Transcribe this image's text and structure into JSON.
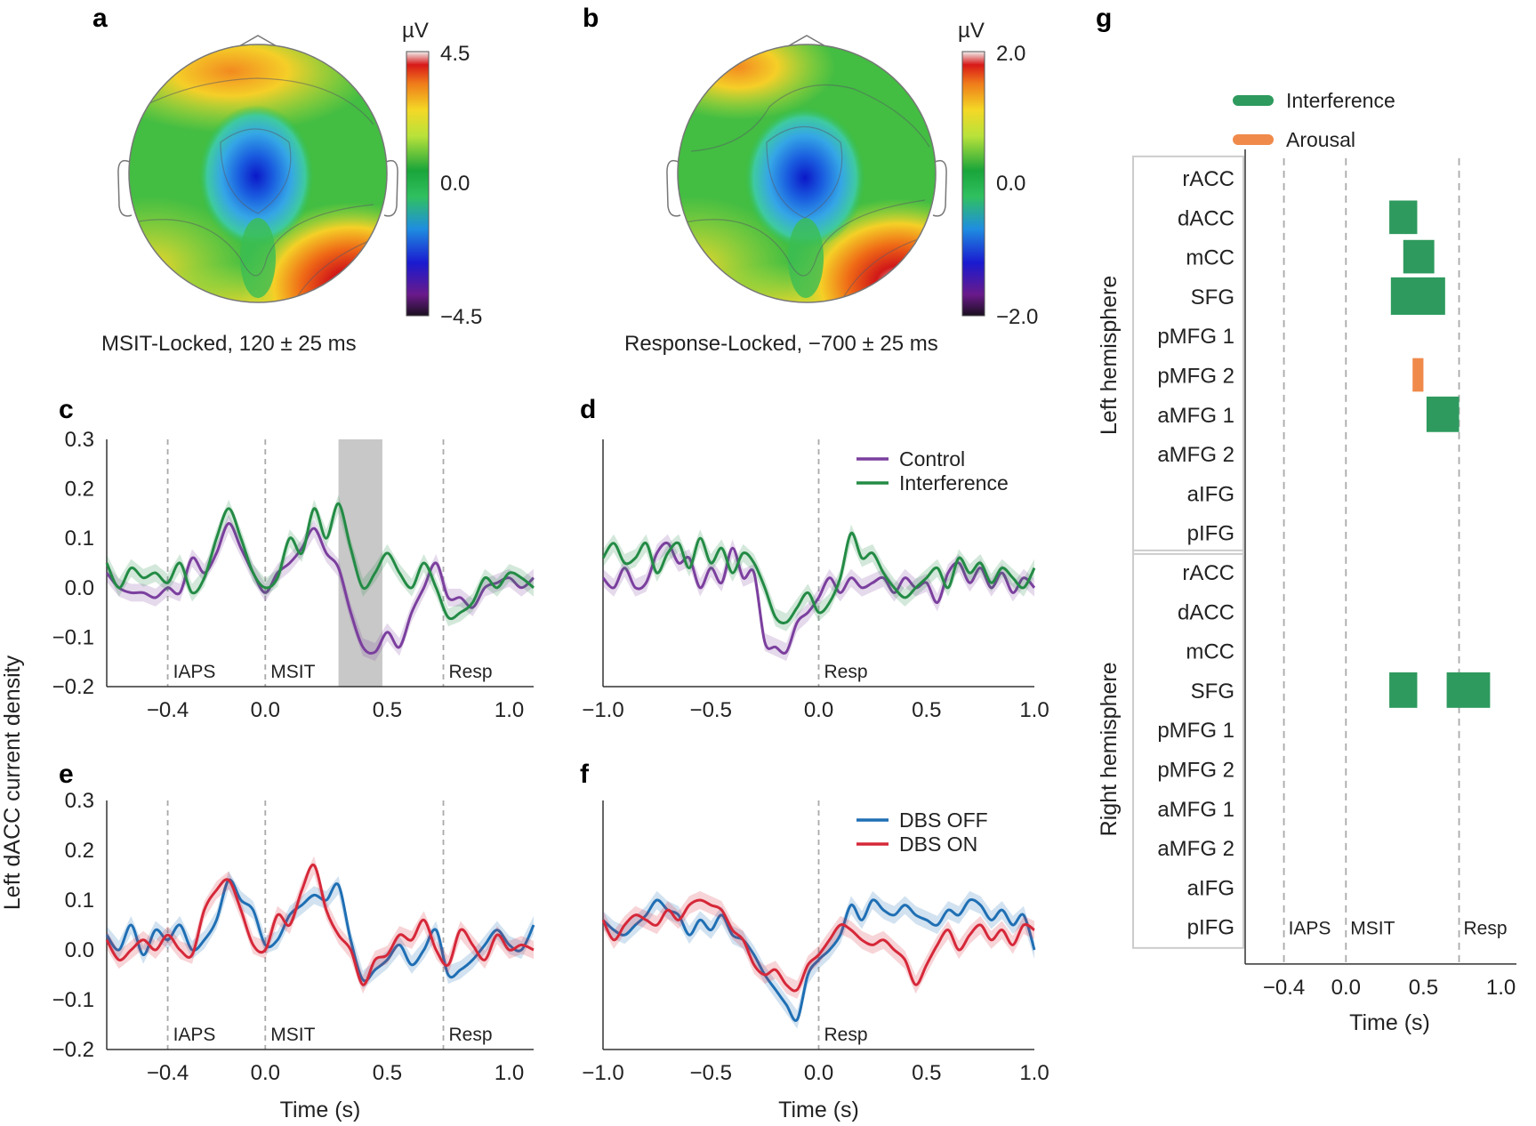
{
  "panel_letters": {
    "a": "a",
    "b": "b",
    "c": "c",
    "d": "d",
    "e": "e",
    "f": "f",
    "g": "g"
  },
  "colors": {
    "control": "#7b3f9e",
    "interference": "#238b45",
    "dbs_off": "#1f6fb4",
    "dbs_on": "#d62839",
    "arousal": "#f08a4b",
    "interference_bar": "#2e9a5e",
    "dashed": "#aaaaaa",
    "shade": "#c8c8c8"
  },
  "topomaps": [
    {
      "id": "a",
      "caption": "MSIT-Locked, 120 ± 25 ms",
      "unit": "µV",
      "vmax": "4.5",
      "vmid": "0.0",
      "vmin": "−4.5"
    },
    {
      "id": "b",
      "caption": "Response-Locked, −700 ± 25 ms",
      "unit": "µV",
      "vmax": "2.0",
      "vmid": "0.0",
      "vmin": "−2.0"
    }
  ],
  "shared_ylabel": "Left dACC current density",
  "xlabel": "Time (s)",
  "chart_data": [
    {
      "id": "c",
      "type": "line",
      "xlim": [
        -0.65,
        1.1
      ],
      "ylim": [
        -0.2,
        0.3
      ],
      "xticks": [
        {
          "v": -0.4,
          "label": "−0.4"
        },
        {
          "v": 0.0,
          "label": "0.0"
        },
        {
          "v": 0.5,
          "label": "0.5"
        },
        {
          "v": 1.0,
          "label": "1.0"
        }
      ],
      "yticks": [
        {
          "v": -0.2,
          "label": "−0.2"
        },
        {
          "v": -0.1,
          "label": "−0.1"
        },
        {
          "v": 0.0,
          "label": "0.0"
        },
        {
          "v": 0.1,
          "label": "0.1"
        },
        {
          "v": 0.2,
          "label": "0.2"
        },
        {
          "v": 0.3,
          "label": "0.3"
        }
      ],
      "events": [
        {
          "x": -0.4,
          "label": "IAPS"
        },
        {
          "x": 0.0,
          "label": "MSIT"
        },
        {
          "x": 0.73,
          "label": "Resp"
        }
      ],
      "shaded": [
        0.3,
        0.48
      ],
      "legend": [
        "Control",
        "Interference"
      ],
      "series": [
        {
          "name": "Control",
          "color": "#7b3f9e",
          "x": [
            -0.65,
            -0.6,
            -0.55,
            -0.5,
            -0.45,
            -0.4,
            -0.35,
            -0.3,
            -0.25,
            -0.2,
            -0.15,
            -0.1,
            -0.05,
            0,
            0.05,
            0.1,
            0.15,
            0.2,
            0.25,
            0.3,
            0.35,
            0.4,
            0.45,
            0.5,
            0.55,
            0.6,
            0.65,
            0.7,
            0.75,
            0.8,
            0.85,
            0.9,
            0.95,
            1.0,
            1.05,
            1.1
          ],
          "y": [
            0.03,
            0.0,
            -0.01,
            -0.01,
            -0.02,
            0.0,
            -0.01,
            0.06,
            0.03,
            0.07,
            0.13,
            0.08,
            0.03,
            -0.01,
            0.03,
            0.05,
            0.08,
            0.12,
            0.07,
            0.04,
            -0.05,
            -0.12,
            -0.13,
            -0.09,
            -0.12,
            -0.05,
            0.0,
            0.05,
            -0.02,
            -0.02,
            -0.04,
            0.0,
            0.01,
            0.02,
            0.0,
            0.02
          ]
        },
        {
          "name": "Interference",
          "color": "#238b45",
          "x": [
            -0.65,
            -0.6,
            -0.55,
            -0.5,
            -0.45,
            -0.4,
            -0.35,
            -0.3,
            -0.25,
            -0.2,
            -0.15,
            -0.1,
            -0.05,
            0,
            0.05,
            0.1,
            0.15,
            0.2,
            0.25,
            0.3,
            0.35,
            0.4,
            0.45,
            0.5,
            0.55,
            0.6,
            0.65,
            0.7,
            0.75,
            0.8,
            0.85,
            0.9,
            0.95,
            1.0,
            1.05,
            1.1
          ],
          "y": [
            0.05,
            0.0,
            0.04,
            0.02,
            0.03,
            0.01,
            0.05,
            -0.01,
            0.02,
            0.1,
            0.16,
            0.1,
            0.03,
            0.0,
            0.02,
            0.1,
            0.07,
            0.16,
            0.1,
            0.17,
            0.08,
            0.0,
            0.03,
            0.07,
            0.03,
            0.0,
            0.05,
            0.0,
            -0.06,
            -0.05,
            -0.03,
            0.02,
            0.0,
            0.03,
            0.02,
            0.0
          ]
        }
      ]
    },
    {
      "id": "d",
      "type": "line",
      "xlim": [
        -1.0,
        1.0
      ],
      "ylim": [
        -0.2,
        0.3
      ],
      "xticks": [
        {
          "v": -1.0,
          "label": "−1.0"
        },
        {
          "v": -0.5,
          "label": "−0.5"
        },
        {
          "v": 0.0,
          "label": "0.0"
        },
        {
          "v": 0.5,
          "label": "0.5"
        },
        {
          "v": 1.0,
          "label": "1.0"
        }
      ],
      "events": [
        {
          "x": 0.0,
          "label": "Resp"
        }
      ],
      "legend": [
        "Control",
        "Interference"
      ],
      "series": [
        {
          "name": "Control",
          "color": "#7b3f9e",
          "x": [
            -1.0,
            -0.95,
            -0.9,
            -0.85,
            -0.8,
            -0.75,
            -0.7,
            -0.65,
            -0.6,
            -0.55,
            -0.5,
            -0.45,
            -0.4,
            -0.35,
            -0.3,
            -0.25,
            -0.2,
            -0.15,
            -0.1,
            -0.05,
            0.0,
            0.05,
            0.1,
            0.15,
            0.2,
            0.25,
            0.3,
            0.35,
            0.4,
            0.45,
            0.5,
            0.55,
            0.6,
            0.65,
            0.7,
            0.75,
            0.8,
            0.85,
            0.9,
            0.95,
            1.0
          ],
          "y": [
            0.02,
            0.0,
            0.04,
            0.0,
            0.01,
            0.07,
            0.09,
            0.05,
            0.06,
            0.0,
            0.04,
            0.01,
            0.08,
            0.02,
            0.03,
            -0.11,
            -0.12,
            -0.13,
            -0.07,
            -0.05,
            -0.02,
            0.02,
            -0.01,
            0.02,
            0.0,
            0.01,
            0.02,
            -0.01,
            0.02,
            0.0,
            0.01,
            -0.03,
            0.03,
            0.05,
            0.01,
            0.04,
            0.0,
            0.03,
            -0.01,
            0.02,
            0.0
          ]
        },
        {
          "name": "Interference",
          "color": "#238b45",
          "x": [
            -1.0,
            -0.95,
            -0.9,
            -0.85,
            -0.8,
            -0.75,
            -0.7,
            -0.65,
            -0.6,
            -0.55,
            -0.5,
            -0.45,
            -0.4,
            -0.35,
            -0.3,
            -0.25,
            -0.2,
            -0.15,
            -0.1,
            -0.05,
            0.0,
            0.05,
            0.1,
            0.15,
            0.2,
            0.25,
            0.3,
            0.35,
            0.4,
            0.45,
            0.5,
            0.55,
            0.6,
            0.65,
            0.7,
            0.75,
            0.8,
            0.85,
            0.9,
            0.95,
            1.0
          ],
          "y": [
            0.06,
            0.09,
            0.05,
            0.06,
            0.09,
            0.03,
            0.07,
            0.09,
            0.04,
            0.1,
            0.05,
            0.08,
            0.03,
            0.07,
            0.05,
            0.0,
            -0.06,
            -0.07,
            -0.04,
            -0.01,
            -0.05,
            -0.03,
            0.02,
            0.11,
            0.06,
            0.07,
            0.03,
            0.0,
            -0.02,
            0.0,
            0.02,
            0.04,
            0.0,
            0.06,
            0.03,
            0.05,
            0.01,
            0.04,
            0.02,
            0.0,
            0.04
          ]
        }
      ]
    },
    {
      "id": "e",
      "type": "line",
      "xlim": [
        -0.65,
        1.1
      ],
      "ylim": [
        -0.2,
        0.3
      ],
      "xticks": [
        {
          "v": -0.4,
          "label": "−0.4"
        },
        {
          "v": 0.0,
          "label": "0.0"
        },
        {
          "v": 0.5,
          "label": "0.5"
        },
        {
          "v": 1.0,
          "label": "1.0"
        }
      ],
      "yticks": [
        {
          "v": -0.2,
          "label": "−0.2"
        },
        {
          "v": -0.1,
          "label": "−0.1"
        },
        {
          "v": 0.0,
          "label": "0.0"
        },
        {
          "v": 0.1,
          "label": "0.1"
        },
        {
          "v": 0.2,
          "label": "0.2"
        },
        {
          "v": 0.3,
          "label": "0.3"
        }
      ],
      "events": [
        {
          "x": -0.4,
          "label": "IAPS"
        },
        {
          "x": 0.0,
          "label": "MSIT"
        },
        {
          "x": 0.73,
          "label": "Resp"
        }
      ],
      "legend": [
        "DBS OFF",
        "DBS ON"
      ],
      "series": [
        {
          "name": "DBS OFF",
          "color": "#1f6fb4",
          "x": [
            -0.65,
            -0.6,
            -0.55,
            -0.5,
            -0.45,
            -0.4,
            -0.35,
            -0.3,
            -0.25,
            -0.2,
            -0.15,
            -0.1,
            -0.05,
            0,
            0.05,
            0.1,
            0.15,
            0.2,
            0.25,
            0.3,
            0.35,
            0.4,
            0.45,
            0.5,
            0.55,
            0.6,
            0.65,
            0.7,
            0.75,
            0.8,
            0.85,
            0.9,
            0.95,
            1.0,
            1.05,
            1.1
          ],
          "y": [
            0.03,
            0.0,
            0.05,
            -0.01,
            0.04,
            0.02,
            0.05,
            0.0,
            0.02,
            0.06,
            0.14,
            0.1,
            0.08,
            0.01,
            0.02,
            0.07,
            0.09,
            0.11,
            0.1,
            0.13,
            0.02,
            -0.06,
            -0.04,
            -0.02,
            0.01,
            -0.03,
            0.0,
            0.04,
            -0.05,
            -0.04,
            -0.02,
            0.01,
            0.04,
            0.01,
            0.0,
            0.05
          ]
        },
        {
          "name": "DBS ON",
          "color": "#d62839",
          "x": [
            -0.65,
            -0.6,
            -0.55,
            -0.5,
            -0.45,
            -0.4,
            -0.35,
            -0.3,
            -0.25,
            -0.2,
            -0.15,
            -0.1,
            -0.05,
            0,
            0.05,
            0.1,
            0.15,
            0.2,
            0.25,
            0.3,
            0.35,
            0.4,
            0.45,
            0.5,
            0.55,
            0.6,
            0.65,
            0.7,
            0.75,
            0.8,
            0.85,
            0.9,
            0.95,
            1.0,
            1.05,
            1.1
          ],
          "y": [
            0.02,
            -0.02,
            0.0,
            0.02,
            0.0,
            0.03,
            0.0,
            -0.01,
            0.08,
            0.12,
            0.14,
            0.08,
            0.01,
            0.0,
            0.07,
            0.05,
            0.12,
            0.17,
            0.08,
            0.03,
            0.0,
            -0.07,
            -0.02,
            -0.01,
            0.03,
            0.02,
            0.06,
            0.0,
            -0.03,
            0.04,
            0.01,
            -0.02,
            0.03,
            0.0,
            0.01,
            0.0
          ]
        }
      ]
    },
    {
      "id": "f",
      "type": "line",
      "xlim": [
        -1.0,
        1.0
      ],
      "ylim": [
        -0.2,
        0.3
      ],
      "xticks": [
        {
          "v": -1.0,
          "label": "−1.0"
        },
        {
          "v": -0.5,
          "label": "−0.5"
        },
        {
          "v": 0.0,
          "label": "0.0"
        },
        {
          "v": 0.5,
          "label": "0.5"
        },
        {
          "v": 1.0,
          "label": "1.0"
        }
      ],
      "events": [
        {
          "x": 0.0,
          "label": "Resp"
        }
      ],
      "legend": [
        "DBS OFF",
        "DBS ON"
      ],
      "series": [
        {
          "name": "DBS OFF",
          "color": "#1f6fb4",
          "x": [
            -1.0,
            -0.95,
            -0.9,
            -0.85,
            -0.8,
            -0.75,
            -0.7,
            -0.65,
            -0.6,
            -0.55,
            -0.5,
            -0.45,
            -0.4,
            -0.35,
            -0.3,
            -0.25,
            -0.2,
            -0.15,
            -0.1,
            -0.05,
            0.0,
            0.05,
            0.1,
            0.15,
            0.2,
            0.25,
            0.3,
            0.35,
            0.4,
            0.45,
            0.5,
            0.55,
            0.6,
            0.65,
            0.7,
            0.75,
            0.8,
            0.85,
            0.9,
            0.95,
            1.0
          ],
          "y": [
            0.06,
            0.04,
            0.03,
            0.05,
            0.07,
            0.1,
            0.08,
            0.07,
            0.03,
            0.06,
            0.04,
            0.07,
            0.03,
            0.02,
            -0.01,
            -0.05,
            -0.08,
            -0.11,
            -0.14,
            -0.05,
            -0.02,
            0.0,
            0.03,
            0.09,
            0.06,
            0.1,
            0.08,
            0.07,
            0.09,
            0.07,
            0.06,
            0.05,
            0.08,
            0.07,
            0.1,
            0.09,
            0.06,
            0.08,
            0.05,
            0.07,
            0.0
          ]
        },
        {
          "name": "DBS ON",
          "color": "#d62839",
          "x": [
            -1.0,
            -0.95,
            -0.9,
            -0.85,
            -0.8,
            -0.75,
            -0.7,
            -0.65,
            -0.6,
            -0.55,
            -0.5,
            -0.45,
            -0.4,
            -0.35,
            -0.3,
            -0.25,
            -0.2,
            -0.15,
            -0.1,
            -0.05,
            0.0,
            0.05,
            0.1,
            0.15,
            0.2,
            0.25,
            0.3,
            0.35,
            0.4,
            0.45,
            0.5,
            0.55,
            0.6,
            0.65,
            0.7,
            0.75,
            0.8,
            0.85,
            0.9,
            0.95,
            1.0
          ],
          "y": [
            0.06,
            0.02,
            0.05,
            0.07,
            0.06,
            0.05,
            0.08,
            0.06,
            0.09,
            0.1,
            0.09,
            0.08,
            0.04,
            0.02,
            -0.03,
            -0.05,
            -0.04,
            -0.07,
            -0.08,
            -0.03,
            -0.01,
            0.02,
            0.05,
            0.04,
            0.02,
            0.01,
            0.02,
            0.0,
            -0.02,
            -0.07,
            -0.03,
            0.01,
            0.04,
            0.0,
            0.03,
            0.05,
            0.02,
            0.04,
            0.01,
            0.05,
            0.04
          ]
        }
      ]
    },
    {
      "id": "g",
      "type": "bar",
      "orientation": "horizontal-intervals",
      "xlim": [
        -0.65,
        1.1
      ],
      "xticks": [
        {
          "v": -0.4,
          "label": "−0.4"
        },
        {
          "v": 0.0,
          "label": "0.0"
        },
        {
          "v": 0.5,
          "label": "0.5"
        },
        {
          "v": 1.0,
          "label": "1.0"
        }
      ],
      "events": [
        {
          "x": -0.4,
          "label": "IAPS"
        },
        {
          "x": 0.0,
          "label": "MSIT"
        },
        {
          "x": 0.73,
          "label": "Resp"
        }
      ],
      "legend": [
        "Interference",
        "Arousal"
      ],
      "groups": [
        {
          "label": "Left hemisphere",
          "regions": [
            "rACC",
            "dACC",
            "mCC",
            "SFG",
            "pMFG 1",
            "pMFG 2",
            "aMFG 1",
            "aMFG 2",
            "aIFG",
            "pIFG"
          ]
        },
        {
          "label": "Right hemisphere",
          "regions": [
            "rACC",
            "dACC",
            "mCC",
            "SFG",
            "pMFG 1",
            "pMFG 2",
            "aMFG 1",
            "aMFG 2",
            "aIFG",
            "pIFG"
          ]
        }
      ],
      "intervals": [
        {
          "group": 0,
          "region": 1,
          "start": 0.28,
          "end": 0.46,
          "type": "Interference",
          "height": 0.85
        },
        {
          "group": 0,
          "region": 2,
          "start": 0.37,
          "end": 0.57,
          "type": "Interference",
          "height": 0.85
        },
        {
          "group": 0,
          "region": 3,
          "start": 0.29,
          "end": 0.64,
          "type": "Interference",
          "height": 0.95
        },
        {
          "group": 0,
          "region": 5,
          "start": 0.43,
          "end": 0.5,
          "type": "Arousal",
          "height": 0.85
        },
        {
          "group": 0,
          "region": 6,
          "start": 0.52,
          "end": 0.73,
          "type": "Interference",
          "height": 0.9
        },
        {
          "group": 1,
          "region": 3,
          "start": 0.28,
          "end": 0.46,
          "type": "Interference",
          "height": 0.9
        },
        {
          "group": 1,
          "region": 3,
          "start": 0.65,
          "end": 0.93,
          "type": "Interference",
          "height": 0.9
        }
      ]
    }
  ]
}
